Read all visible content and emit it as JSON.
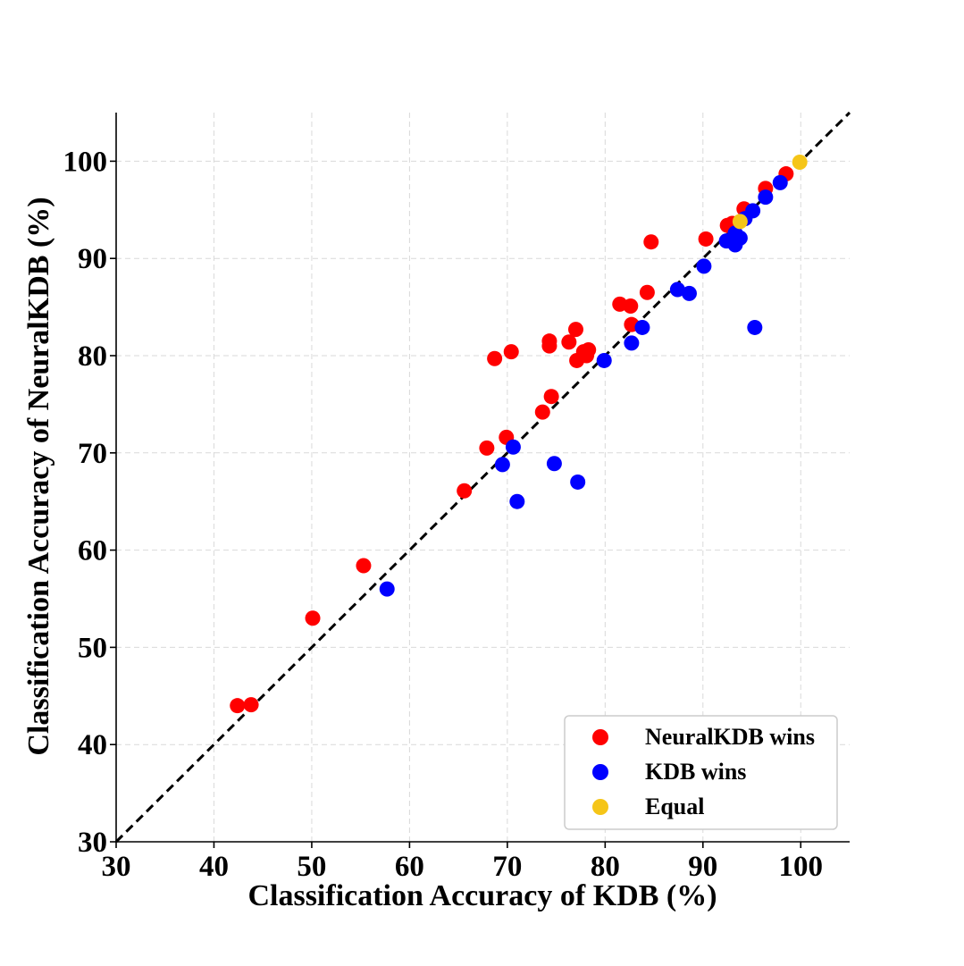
{
  "chart_data": {
    "type": "scatter",
    "title": "",
    "xlabel": "Classification Accuracy of KDB (%)",
    "ylabel": "Classification Accuracy of NeuralKDB (%)",
    "xlim": [
      30,
      105
    ],
    "ylim": [
      30,
      105
    ],
    "xticks": [
      30,
      40,
      50,
      60,
      70,
      80,
      90,
      100
    ],
    "yticks": [
      30,
      40,
      50,
      60,
      70,
      80,
      90,
      100
    ],
    "grid": true,
    "diagonal_line": "y = x (black dashed)",
    "legend_position": "bottom-right",
    "series": [
      {
        "name": "NeuralKDB wins",
        "color": "#ff0000",
        "points": [
          [
            42.4,
            44.0
          ],
          [
            43.8,
            44.1
          ],
          [
            50.1,
            53.0
          ],
          [
            55.3,
            58.4
          ],
          [
            65.6,
            66.1
          ],
          [
            67.9,
            70.5
          ],
          [
            69.9,
            71.6
          ],
          [
            68.7,
            79.7
          ],
          [
            70.4,
            80.4
          ],
          [
            73.6,
            74.2
          ],
          [
            74.5,
            75.8
          ],
          [
            74.3,
            81.0
          ],
          [
            74.3,
            81.5
          ],
          [
            76.3,
            81.4
          ],
          [
            77.0,
            82.7
          ],
          [
            77.1,
            79.5
          ],
          [
            77.8,
            80.4
          ],
          [
            78.3,
            80.6
          ],
          [
            78.1,
            80.0
          ],
          [
            81.5,
            85.3
          ],
          [
            82.6,
            85.1
          ],
          [
            82.7,
            83.2
          ],
          [
            84.3,
            86.5
          ],
          [
            84.7,
            91.7
          ],
          [
            90.3,
            92.0
          ],
          [
            92.5,
            93.4
          ],
          [
            93.0,
            93.6
          ],
          [
            94.2,
            95.1
          ],
          [
            96.4,
            97.2
          ],
          [
            98.5,
            98.7
          ]
        ]
      },
      {
        "name": "KDB wins",
        "color": "#0000ff",
        "points": [
          [
            57.7,
            56.0
          ],
          [
            69.5,
            68.8
          ],
          [
            70.6,
            70.6
          ],
          [
            71.0,
            65.0
          ],
          [
            74.8,
            68.9
          ],
          [
            77.2,
            67.0
          ],
          [
            79.9,
            79.5
          ],
          [
            82.7,
            81.3
          ],
          [
            83.8,
            82.9
          ],
          [
            87.4,
            86.8
          ],
          [
            88.6,
            86.4
          ],
          [
            90.1,
            89.2
          ],
          [
            92.4,
            91.8
          ],
          [
            93.3,
            91.4
          ],
          [
            93.8,
            92.1
          ],
          [
            93.3,
            92.6
          ],
          [
            94.3,
            94.1
          ],
          [
            95.1,
            94.9
          ],
          [
            95.3,
            82.9
          ],
          [
            96.4,
            96.3
          ],
          [
            97.9,
            97.8
          ]
        ]
      },
      {
        "name": "Equal",
        "color": "#f5c518",
        "points": [
          [
            93.8,
            93.8
          ],
          [
            99.9,
            99.9
          ]
        ]
      }
    ],
    "legend": [
      {
        "label": "NeuralKDB wins",
        "color": "#ff0000"
      },
      {
        "label": "KDB wins",
        "color": "#0000ff"
      },
      {
        "label": "Equal",
        "color": "#f5c518"
      }
    ]
  }
}
